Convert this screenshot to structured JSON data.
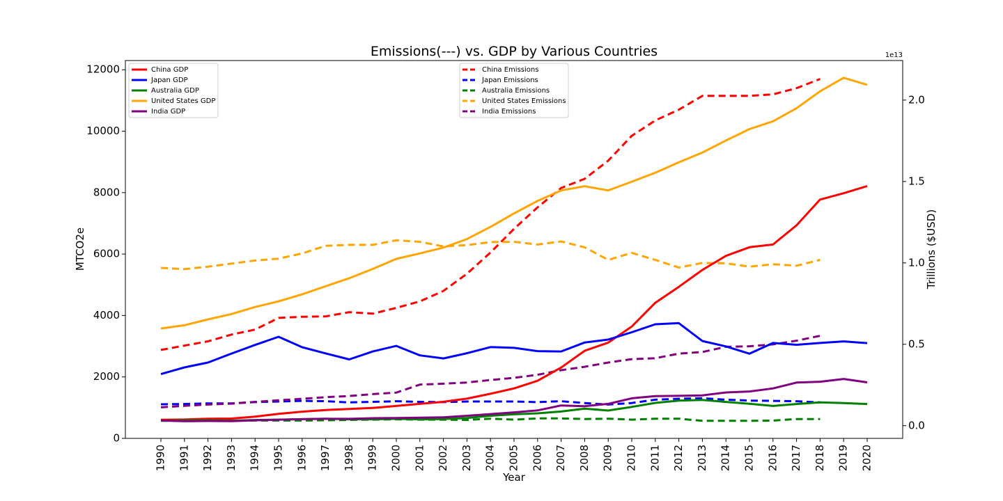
{
  "chart_data": {
    "type": "line",
    "title": "Emissions(---) vs. GDP by Various Countries",
    "xlabel": "Year",
    "ylabel_left": "MTCO2e",
    "ylabel_right": "Trillions ($USD)",
    "right_axis_offset": "1e13",
    "x": [
      1990,
      1991,
      1992,
      1993,
      1994,
      1995,
      1996,
      1997,
      1998,
      1999,
      2000,
      2001,
      2002,
      2003,
      2004,
      2005,
      2006,
      2007,
      2008,
      2009,
      2010,
      2011,
      2012,
      2013,
      2014,
      2015,
      2016,
      2017,
      2018,
      2019,
      2020
    ],
    "x_ticks": [
      "1990",
      "1991",
      "1992",
      "1993",
      "1994",
      "1995",
      "1996",
      "1997",
      "1998",
      "1999",
      "2000",
      "2001",
      "2002",
      "2003",
      "2004",
      "2005",
      "2006",
      "2007",
      "2008",
      "2009",
      "2010",
      "2011",
      "2012",
      "2013",
      "2014",
      "2015",
      "2016",
      "2017",
      "2018",
      "2019",
      "2020"
    ],
    "ylim_left": [
      0,
      12300
    ],
    "yticks_left": [
      "0",
      "2000",
      "4000",
      "6000",
      "8000",
      "10000",
      "12000"
    ],
    "ylim_right": [
      -0.078,
      2.243
    ],
    "yticks_right": [
      "0.0",
      "0.5",
      "1.0",
      "1.5",
      "2.0"
    ],
    "gdp_legend_position": "upper-left",
    "emissions_legend_position": "upper-center",
    "gdp_series": [
      {
        "name": "China GDP",
        "color": "#ff0000",
        "values": [
          0.036,
          0.038,
          0.043,
          0.044,
          0.056,
          0.073,
          0.086,
          0.096,
          0.103,
          0.109,
          0.121,
          0.134,
          0.147,
          0.166,
          0.196,
          0.229,
          0.276,
          0.357,
          0.46,
          0.51,
          0.609,
          0.755,
          0.853,
          0.957,
          1.043,
          1.096,
          1.113,
          1.231,
          1.389,
          1.428,
          1.472
        ]
      },
      {
        "name": "Japan GDP",
        "color": "#0000ff",
        "values": [
          0.317,
          0.358,
          0.388,
          0.443,
          0.496,
          0.546,
          0.482,
          0.444,
          0.407,
          0.456,
          0.49,
          0.432,
          0.413,
          0.445,
          0.483,
          0.478,
          0.458,
          0.456,
          0.511,
          0.529,
          0.574,
          0.623,
          0.63,
          0.52,
          0.487,
          0.442,
          0.508,
          0.497,
          0.508,
          0.518,
          0.507
        ]
      },
      {
        "name": "Australia GDP",
        "color": "#008000",
        "values": [
          0.031,
          0.032,
          0.033,
          0.031,
          0.035,
          0.037,
          0.04,
          0.043,
          0.039,
          0.039,
          0.042,
          0.039,
          0.041,
          0.047,
          0.061,
          0.07,
          0.076,
          0.087,
          0.105,
          0.093,
          0.115,
          0.14,
          0.154,
          0.158,
          0.146,
          0.135,
          0.121,
          0.133,
          0.143,
          0.139,
          0.133
        ]
      },
      {
        "name": "United States GDP",
        "color": "#ffa500",
        "values": [
          0.597,
          0.617,
          0.653,
          0.686,
          0.729,
          0.764,
          0.807,
          0.857,
          0.906,
          0.963,
          1.025,
          1.058,
          1.094,
          1.146,
          1.221,
          1.304,
          1.381,
          1.445,
          1.471,
          1.445,
          1.499,
          1.554,
          1.618,
          1.678,
          1.752,
          1.822,
          1.87,
          1.95,
          2.054,
          2.137,
          2.094
        ]
      },
      {
        "name": "India GDP",
        "color": "#800080",
        "values": [
          0.032,
          0.027,
          0.029,
          0.028,
          0.033,
          0.037,
          0.04,
          0.042,
          0.042,
          0.046,
          0.047,
          0.049,
          0.051,
          0.061,
          0.071,
          0.082,
          0.094,
          0.124,
          0.12,
          0.134,
          0.168,
          0.182,
          0.183,
          0.186,
          0.204,
          0.21,
          0.229,
          0.265,
          0.27,
          0.287,
          0.266
        ]
      }
    ],
    "emissions_series": [
      {
        "name": "China Emissions",
        "color": "#ff0000",
        "values": [
          2880,
          3020,
          3160,
          3380,
          3540,
          3920,
          3960,
          3970,
          4110,
          4060,
          4250,
          4460,
          4800,
          5360,
          6050,
          6820,
          7520,
          8150,
          8450,
          9040,
          9850,
          10350,
          10700,
          11150,
          11150,
          11150,
          11200,
          11400,
          11700
        ]
      },
      {
        "name": "Japan Emissions",
        "color": "#0000ff",
        "values": [
          1110,
          1120,
          1140,
          1140,
          1180,
          1200,
          1220,
          1210,
          1170,
          1190,
          1210,
          1190,
          1180,
          1200,
          1200,
          1200,
          1180,
          1210,
          1150,
          1100,
          1150,
          1260,
          1290,
          1310,
          1260,
          1230,
          1220,
          1210,
          1170
        ]
      },
      {
        "name": "Australia Emissions",
        "color": "#008000",
        "values": [
          570,
          570,
          570,
          570,
          580,
          580,
          580,
          590,
          600,
          610,
          620,
          610,
          610,
          600,
          640,
          610,
          650,
          650,
          630,
          640,
          610,
          640,
          640,
          570,
          570,
          570,
          580,
          630,
          630
        ]
      },
      {
        "name": "United States Emissions",
        "color": "#ffa500",
        "values": [
          5550,
          5510,
          5590,
          5690,
          5790,
          5850,
          6020,
          6270,
          6300,
          6300,
          6450,
          6400,
          6250,
          6290,
          6390,
          6400,
          6310,
          6410,
          6220,
          5810,
          6040,
          5810,
          5560,
          5710,
          5700,
          5590,
          5670,
          5620,
          5810
        ]
      },
      {
        "name": "India Emissions",
        "color": "#800080",
        "values": [
          1010,
          1060,
          1100,
          1130,
          1190,
          1240,
          1290,
          1340,
          1380,
          1440,
          1490,
          1750,
          1780,
          1820,
          1900,
          1970,
          2070,
          2220,
          2330,
          2470,
          2580,
          2610,
          2760,
          2810,
          2980,
          3000,
          3060,
          3180,
          3340
        ]
      }
    ]
  }
}
